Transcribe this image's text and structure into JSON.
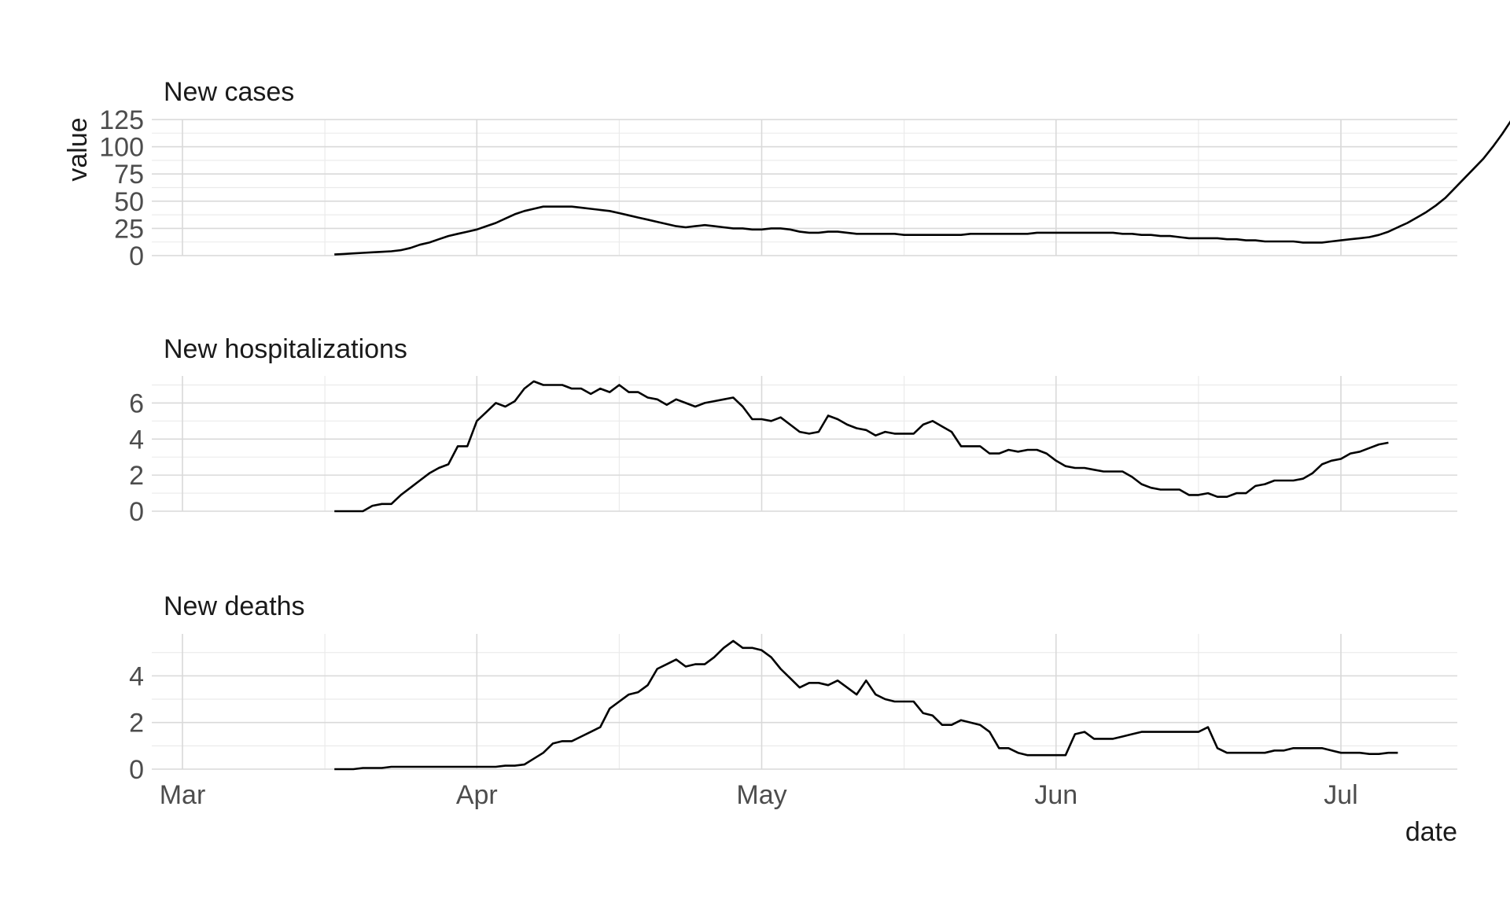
{
  "chart_data": {
    "type": "line",
    "xlabel": "date",
    "ylabel": "value",
    "x_tick_labels": [
      "Mar",
      "Apr",
      "May",
      "Jun",
      "Jul"
    ],
    "x_start": "2020-03-17",
    "panels": [
      {
        "title": "New cases",
        "ylim": [
          0,
          125
        ],
        "y_ticks": [
          0,
          25,
          50,
          75,
          100,
          125
        ],
        "y_tick_labels": [
          "0",
          "25",
          "50",
          "75",
          "100",
          "125"
        ],
        "values": [
          1,
          1.5,
          2,
          2.5,
          3,
          3.5,
          4,
          5,
          7,
          10,
          12,
          15,
          18,
          20,
          22,
          24,
          27,
          30,
          34,
          38,
          41,
          43,
          45,
          45,
          45,
          45,
          44,
          43,
          42,
          41,
          39,
          37,
          35,
          33,
          31,
          29,
          27,
          26,
          27,
          28,
          27,
          26,
          25,
          25,
          24,
          24,
          25,
          25,
          24,
          22,
          21,
          21,
          22,
          22,
          21,
          20,
          20,
          20,
          20,
          20,
          19,
          19,
          19,
          19,
          19,
          19,
          19,
          20,
          20,
          20,
          20,
          20,
          20,
          20,
          21,
          21,
          21,
          21,
          21,
          21,
          21,
          21,
          21,
          20,
          20,
          19,
          19,
          18,
          18,
          17,
          16,
          16,
          16,
          16,
          15,
          15,
          14,
          14,
          13,
          13,
          13,
          13,
          12,
          12,
          12,
          13,
          14,
          15,
          16,
          17,
          19,
          22,
          26,
          30,
          35,
          40,
          46,
          53,
          62,
          71,
          80,
          89,
          100,
          112,
          125
        ]
      },
      {
        "title": "New hospitalizations",
        "ylim": [
          0,
          7.5
        ],
        "y_ticks": [
          0,
          2,
          4,
          6
        ],
        "y_tick_labels": [
          "0",
          "2",
          "4",
          "6"
        ],
        "values": [
          0,
          0,
          0,
          0,
          0.3,
          0.4,
          0.4,
          0.9,
          1.3,
          1.7,
          2.1,
          2.4,
          2.6,
          3.6,
          3.6,
          5.0,
          5.5,
          6.0,
          5.8,
          6.1,
          6.8,
          7.2,
          7.0,
          7.0,
          7.0,
          6.8,
          6.8,
          6.5,
          6.8,
          6.6,
          7.0,
          6.6,
          6.6,
          6.3,
          6.2,
          5.9,
          6.2,
          6.0,
          5.8,
          6.0,
          6.1,
          6.2,
          6.3,
          5.8,
          5.1,
          5.1,
          5.0,
          5.2,
          4.8,
          4.4,
          4.3,
          4.4,
          5.3,
          5.1,
          4.8,
          4.6,
          4.5,
          4.2,
          4.4,
          4.3,
          4.3,
          4.3,
          4.8,
          5.0,
          4.7,
          4.4,
          3.6,
          3.6,
          3.6,
          3.2,
          3.2,
          3.4,
          3.3,
          3.4,
          3.4,
          3.2,
          2.8,
          2.5,
          2.4,
          2.4,
          2.3,
          2.2,
          2.2,
          2.2,
          1.9,
          1.5,
          1.3,
          1.2,
          1.2,
          1.2,
          0.9,
          0.9,
          1.0,
          0.8,
          0.8,
          1.0,
          1.0,
          1.4,
          1.5,
          1.7,
          1.7,
          1.7,
          1.8,
          2.1,
          2.6,
          2.8,
          2.9,
          3.2,
          3.3,
          3.5,
          3.7,
          3.8
        ]
      },
      {
        "title": "New deaths",
        "ylim": [
          0,
          5.8
        ],
        "y_ticks": [
          0,
          2,
          4
        ],
        "y_tick_labels": [
          "0",
          "2",
          "4"
        ],
        "values": [
          0,
          0,
          0,
          0.05,
          0.05,
          0.05,
          0.1,
          0.1,
          0.1,
          0.1,
          0.1,
          0.1,
          0.1,
          0.1,
          0.1,
          0.1,
          0.1,
          0.1,
          0.15,
          0.15,
          0.2,
          0.45,
          0.7,
          1.1,
          1.2,
          1.2,
          1.4,
          1.6,
          1.8,
          2.6,
          2.9,
          3.2,
          3.3,
          3.6,
          4.3,
          4.5,
          4.7,
          4.4,
          4.5,
          4.5,
          4.8,
          5.2,
          5.5,
          5.2,
          5.2,
          5.1,
          4.8,
          4.3,
          3.9,
          3.5,
          3.7,
          3.7,
          3.6,
          3.8,
          3.5,
          3.2,
          3.8,
          3.2,
          3.0,
          2.9,
          2.9,
          2.9,
          2.4,
          2.3,
          1.9,
          1.9,
          2.1,
          2.0,
          1.9,
          1.6,
          0.9,
          0.9,
          0.7,
          0.6,
          0.6,
          0.6,
          0.6,
          0.6,
          1.5,
          1.6,
          1.3,
          1.3,
          1.3,
          1.4,
          1.5,
          1.6,
          1.6,
          1.6,
          1.6,
          1.6,
          1.6,
          1.6,
          1.8,
          0.9,
          0.7,
          0.7,
          0.7,
          0.7,
          0.7,
          0.8,
          0.8,
          0.9,
          0.9,
          0.9,
          0.9,
          0.8,
          0.7,
          0.7,
          0.7,
          0.65,
          0.65,
          0.7,
          0.7
        ]
      }
    ]
  }
}
